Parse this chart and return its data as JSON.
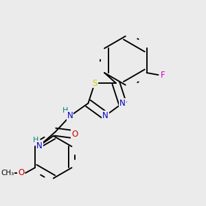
{
  "bg_color": "#ebebeb",
  "atom_colors": {
    "C": "#000000",
    "N": "#0000cc",
    "O": "#cc0000",
    "S": "#cccc00",
    "F": "#cc00cc",
    "H": "#008080"
  },
  "bond_color": "#000000",
  "lw": 1.4,
  "fontsize": 8.5
}
